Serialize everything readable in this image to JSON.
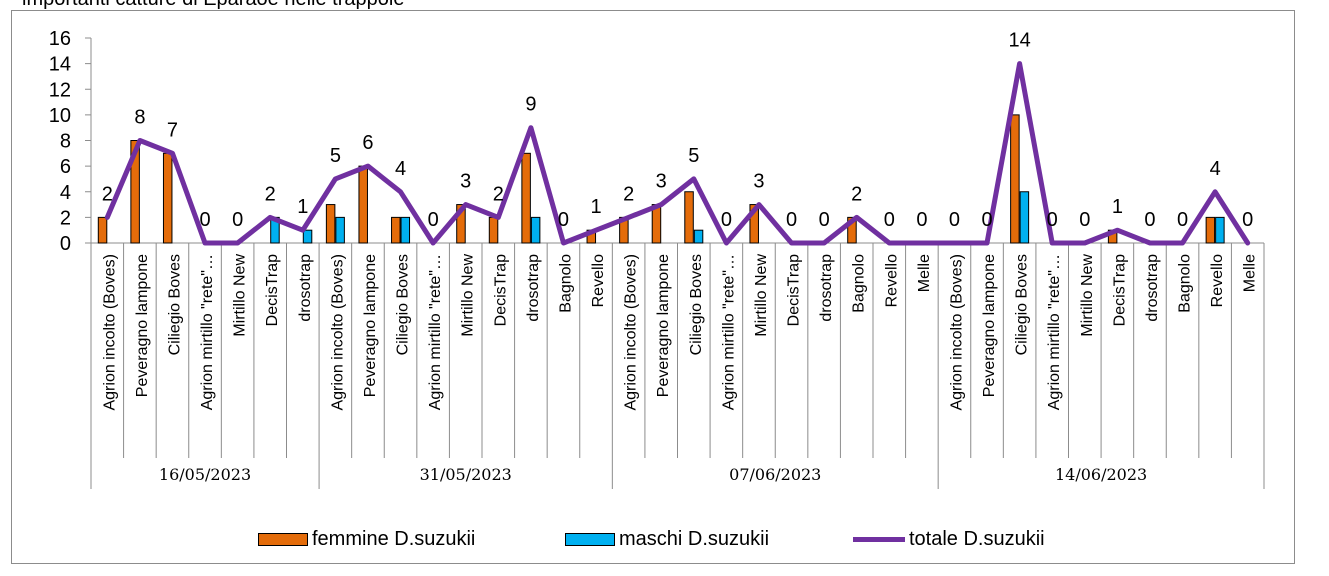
{
  "top_caption": "importanti catture di Eparaoe nelle trappole",
  "colors": {
    "femmine": "#e46c0a",
    "maschi": "#00b0f0",
    "totale": "#7030a0",
    "axis": "#8c8c8c"
  },
  "chart_data": {
    "type": "bar",
    "ylim": [
      0,
      16
    ],
    "yticks": [
      "0",
      "2",
      "4",
      "6",
      "8",
      "10",
      "12",
      "14",
      "16"
    ],
    "grid": false,
    "legend_position": "bottom",
    "groups": [
      {
        "label": "16/05/2023",
        "count": 7
      },
      {
        "label": "31/05/2023",
        "count": 9
      },
      {
        "label": "07/06/2023",
        "count": 10
      },
      {
        "label": "14/06/2023",
        "count": 10
      }
    ],
    "categories": [
      "Agrion incolto (Boves)",
      "Peveragno lampone",
      "Ciliegio Boves",
      "Agrion mirtillo \"rete\"…",
      "Mirtillo New",
      "DecisTrap",
      "drosotrap",
      "Agrion incolto (Boves)",
      "Peveragno lampone",
      "Ciliegio Boves",
      "Agrion mirtillo \"rete\"…",
      "Mirtillo New",
      "DecisTrap",
      "drosotrap",
      "Bagnolo",
      "Revello",
      "Agrion incolto (Boves)",
      "Peveragno lampone",
      "Ciliegio Boves",
      "Agrion mirtillo \"rete\"…",
      "Mirtillo New",
      "DecisTrap",
      "drosotrap",
      "Bagnolo",
      "Revello",
      "Melle",
      "Agrion incolto (Boves)",
      "Peveragno lampone",
      "Ciliegio Boves",
      "Agrion mirtillo \"rete\"…",
      "Mirtillo New",
      "DecisTrap",
      "drosotrap",
      "Bagnolo",
      "Revello",
      "Melle"
    ],
    "series": [
      {
        "name": "femmine D.suzukii",
        "kind": "bar",
        "values": [
          2,
          8,
          7,
          0,
          0,
          0,
          0,
          3,
          6,
          2,
          0,
          3,
          2,
          7,
          0,
          1,
          2,
          3,
          4,
          0,
          3,
          0,
          0,
          2,
          0,
          0,
          0,
          0,
          10,
          0,
          0,
          1,
          0,
          0,
          2,
          0
        ]
      },
      {
        "name": "maschi D.suzukii",
        "kind": "bar",
        "values": [
          0,
          0,
          0,
          0,
          0,
          2,
          1,
          2,
          0,
          2,
          0,
          0,
          0,
          2,
          0,
          0,
          0,
          0,
          1,
          0,
          0,
          0,
          0,
          0,
          0,
          0,
          0,
          0,
          4,
          0,
          0,
          0,
          0,
          0,
          2,
          0
        ]
      },
      {
        "name": "totale D.suzukii",
        "kind": "line",
        "values": [
          2,
          8,
          7,
          0,
          0,
          2,
          1,
          5,
          6,
          4,
          0,
          3,
          2,
          9,
          0,
          1,
          2,
          3,
          5,
          0,
          3,
          0,
          0,
          2,
          0,
          0,
          0,
          0,
          14,
          0,
          0,
          1,
          0,
          0,
          4,
          0
        ]
      }
    ],
    "data_labels": [
      "2",
      "8",
      "7",
      "0",
      "0",
      "2",
      "1",
      "5",
      "6",
      "4",
      "0",
      "3",
      "2",
      "9",
      "0",
      "1",
      "2",
      "3",
      "5",
      "0",
      "3",
      "0",
      "0",
      "2",
      "0",
      "0",
      "0",
      "0",
      "14",
      "0",
      "0",
      "1",
      "0",
      "0",
      "4",
      "0"
    ]
  }
}
